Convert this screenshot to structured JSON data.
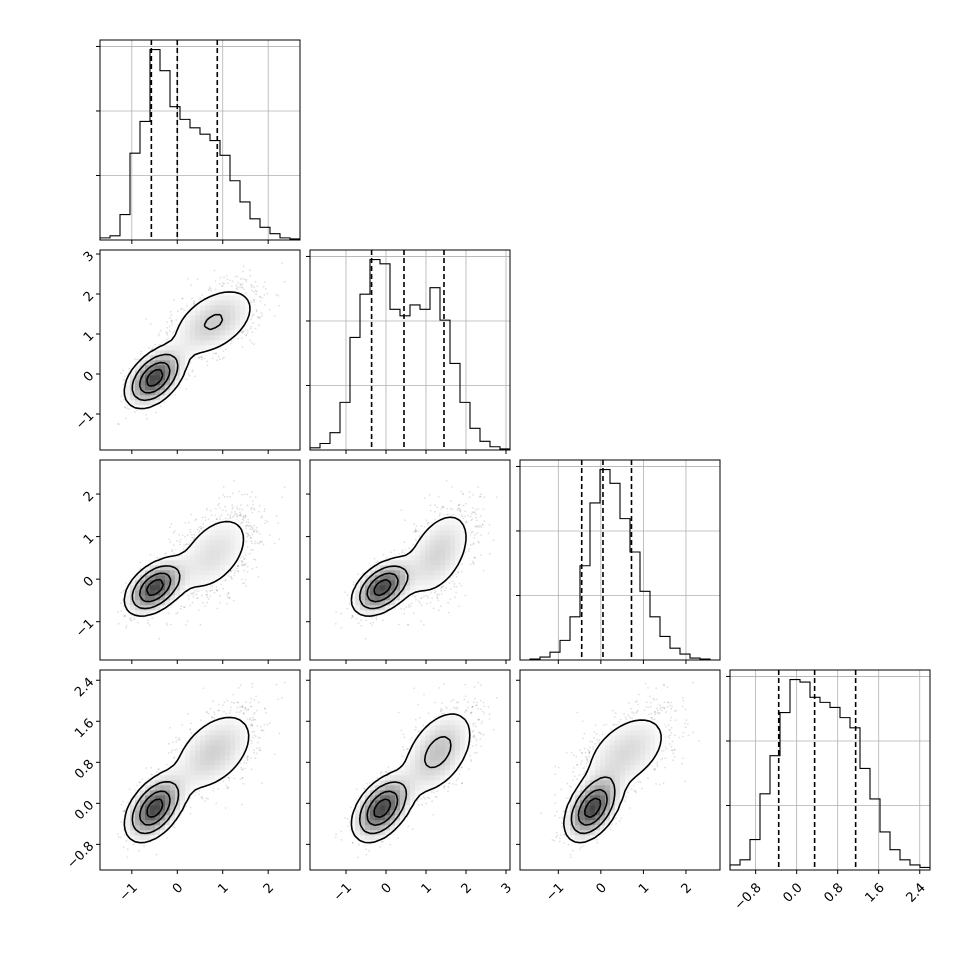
{
  "colors": {
    "ink": "#000000",
    "grid": "#b0b0b0",
    "background": "#ffffff"
  },
  "chart_data": {
    "type": "corner",
    "title": "",
    "variables": [
      {
        "index": 0,
        "lim": [
          -1.7,
          2.7
        ],
        "ticks": [
          -1,
          0,
          1,
          2
        ],
        "tick_labels": [
          "−1",
          "0",
          "1",
          "2"
        ],
        "quantiles": [
          -0.57,
          0.0,
          0.88
        ],
        "hist_bins": [
          -1.7,
          -1.48,
          -1.26,
          -1.04,
          -0.82,
          -0.6,
          -0.38,
          -0.16,
          0.06,
          0.28,
          0.5,
          0.72,
          0.94,
          1.16,
          1.38,
          1.6,
          1.82,
          2.04,
          2.26,
          2.48,
          2.7
        ],
        "hist_counts": [
          1,
          2,
          12,
          41,
          56,
          90,
          80,
          63,
          57,
          53,
          50,
          47,
          40,
          28,
          18,
          10,
          6,
          3,
          1,
          0.5
        ]
      },
      {
        "index": 1,
        "lim": [
          -1.9,
          3.1
        ],
        "ticks": [
          -1,
          0,
          1,
          2,
          3
        ],
        "tick_labels": [
          "−1",
          "0",
          "1",
          "2",
          "3"
        ],
        "quantiles": [
          -0.36,
          0.45,
          1.45
        ],
        "hist_bins": [
          -1.9,
          -1.65,
          -1.4,
          -1.15,
          -0.9,
          -0.65,
          -0.4,
          -0.15,
          0.1,
          0.35,
          0.6,
          0.85,
          1.1,
          1.35,
          1.6,
          1.85,
          2.1,
          2.35,
          2.6,
          2.85,
          3.1
        ],
        "hist_counts": [
          1,
          3,
          8,
          22,
          52,
          72,
          88,
          86,
          65,
          62,
          67,
          65,
          75,
          60,
          40,
          22,
          10,
          4,
          1.5,
          0.5
        ]
      },
      {
        "index": 2,
        "lim": [
          -1.9,
          2.8
        ],
        "ticks": [
          -1,
          0,
          1,
          2
        ],
        "tick_labels": [
          "−1",
          "0",
          "1",
          "2"
        ],
        "quantiles": [
          -0.45,
          0.05,
          0.72
        ],
        "hist_bins": [
          -1.9,
          -1.665,
          -1.43,
          -1.195,
          -0.96,
          -0.725,
          -0.49,
          -0.255,
          -0.02,
          0.215,
          0.45,
          0.685,
          0.92,
          1.155,
          1.39,
          1.625,
          1.86,
          2.095,
          2.33,
          2.565,
          2.8
        ],
        "hist_counts": [
          0,
          0.5,
          1.5,
          4,
          10,
          22,
          48,
          80,
          97,
          90,
          72,
          55,
          35,
          22,
          12,
          6,
          3,
          1,
          0.5,
          0
        ]
      },
      {
        "index": 3,
        "lim": [
          -1.3,
          2.6
        ],
        "ticks": [
          -0.8,
          0.0,
          0.8,
          1.6,
          2.4
        ],
        "tick_labels": [
          "−0.8",
          "0.0",
          "0.8",
          "1.6",
          "2.4"
        ],
        "quantiles": [
          -0.35,
          0.35,
          1.15
        ],
        "hist_bins": [
          -1.3,
          -1.105,
          -0.91,
          -0.715,
          -0.52,
          -0.325,
          -0.13,
          0.065,
          0.26,
          0.455,
          0.65,
          0.845,
          1.04,
          1.235,
          1.43,
          1.625,
          1.82,
          2.015,
          2.21,
          2.405,
          2.6
        ],
        "hist_counts": [
          2,
          4,
          12,
          30,
          45,
          62,
          75,
          74,
          68,
          66,
          64,
          60,
          56,
          40,
          28,
          15,
          8,
          4,
          2,
          1
        ]
      }
    ],
    "modes": [
      {
        "center": [
          -0.5,
          -0.1,
          -0.2,
          -0.1
        ],
        "spread": [
          0.28,
          0.32,
          0.28,
          0.28
        ],
        "weight": 0.55
      },
      {
        "center": [
          0.8,
          1.3,
          0.6,
          1.0
        ],
        "spread": [
          0.48,
          0.45,
          0.55,
          0.42
        ],
        "weight": 0.45
      }
    ],
    "grid": true,
    "legend": "none"
  }
}
